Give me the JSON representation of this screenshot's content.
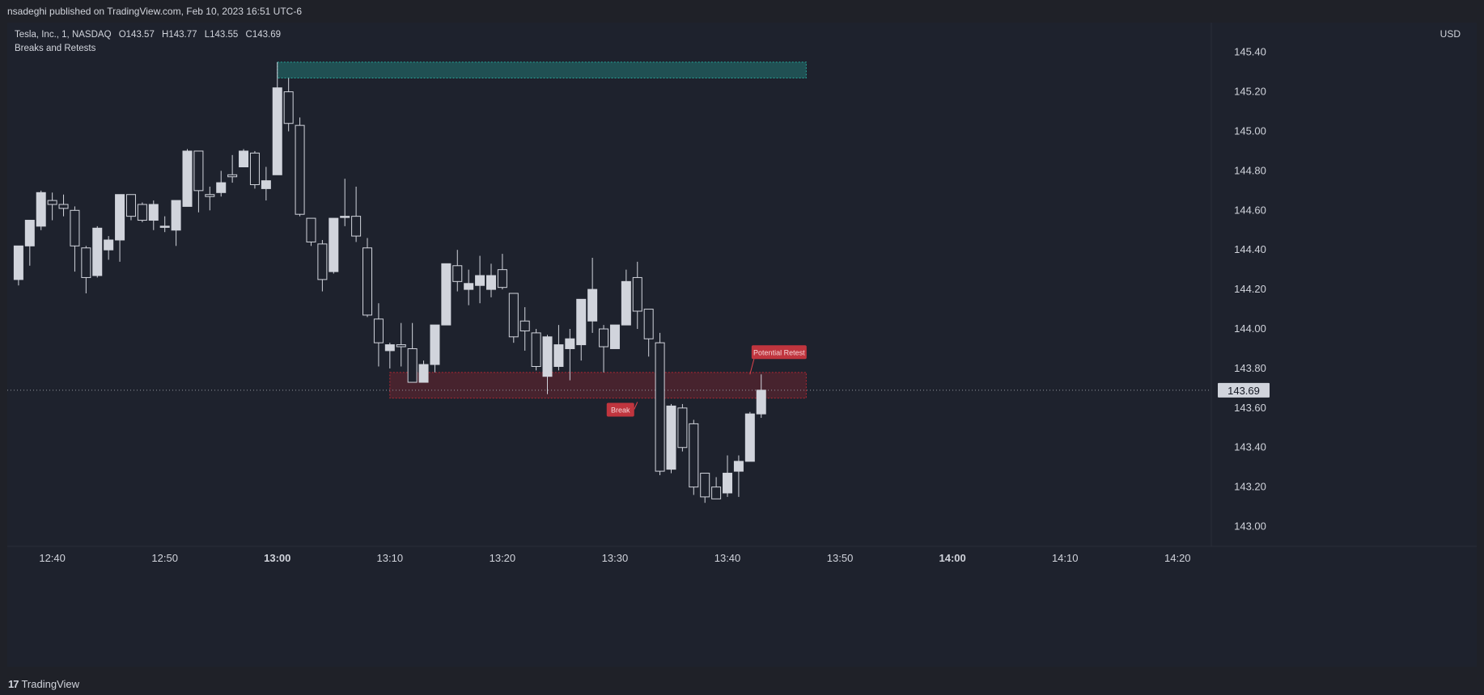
{
  "header": {
    "published_text": "nsadeghi published on TradingView.com, Feb 10, 2023 16:51 UTC-6"
  },
  "legend": {
    "symbol_line": "Tesla, Inc., 1, NASDAQ",
    "open": "O143.57",
    "high": "H143.77",
    "low": "L143.55",
    "close": "C143.69",
    "indicator": "Breaks and Retests"
  },
  "currency": "USD",
  "footer": {
    "logo_mark": "17",
    "brand": "TradingView"
  },
  "colors": {
    "background": "#1e222d",
    "candle": "#d1d4dc",
    "resistance_zone": "#26a69a",
    "support_zone": "#b22833",
    "label_red": "#c0353e"
  },
  "chart_data": {
    "type": "candlestick",
    "y_axis": {
      "range": [
        142.9,
        145.55
      ],
      "ticks": [
        "145.40",
        "145.20",
        "145.00",
        "144.80",
        "144.60",
        "144.40",
        "144.20",
        "144.00",
        "143.80",
        "143.60",
        "143.40",
        "143.20",
        "143.00"
      ]
    },
    "x_axis": {
      "range_minutes": [
        "12:36",
        "14:23"
      ],
      "ticks": [
        {
          "time": "12:40",
          "label": "12:40",
          "bold": false
        },
        {
          "time": "12:50",
          "label": "12:50",
          "bold": false
        },
        {
          "time": "13:00",
          "label": "13:00",
          "bold": true
        },
        {
          "time": "13:10",
          "label": "13:10",
          "bold": false
        },
        {
          "time": "13:20",
          "label": "13:20",
          "bold": false
        },
        {
          "time": "13:30",
          "label": "13:30",
          "bold": false
        },
        {
          "time": "13:40",
          "label": "13:40",
          "bold": false
        },
        {
          "time": "13:50",
          "label": "13:50",
          "bold": false
        },
        {
          "time": "14:00",
          "label": "14:00",
          "bold": true
        },
        {
          "time": "14:10",
          "label": "14:10",
          "bold": false
        },
        {
          "time": "14:20",
          "label": "14:20",
          "bold": false
        }
      ]
    },
    "last_price": {
      "value": 143.69,
      "label": "143.69"
    },
    "zones": [
      {
        "name": "resistance",
        "from": "13:00",
        "to": "13:47",
        "top": 145.35,
        "bottom": 145.27
      },
      {
        "name": "support",
        "from": "13:10",
        "to": "13:47",
        "top": 143.78,
        "bottom": 143.65
      }
    ],
    "labels": [
      {
        "text": "Break",
        "time": "13:32",
        "price": 143.63
      },
      {
        "text": "Potential Retest",
        "time": "13:42",
        "price": 143.77
      }
    ],
    "candles": [
      {
        "t": "12:37",
        "o": 144.25,
        "h": 144.42,
        "l": 144.22,
        "c": 144.42
      },
      {
        "t": "12:38",
        "o": 144.42,
        "h": 144.55,
        "l": 144.32,
        "c": 144.55
      },
      {
        "t": "12:39",
        "o": 144.52,
        "h": 144.7,
        "l": 144.5,
        "c": 144.69
      },
      {
        "t": "12:40",
        "o": 144.65,
        "h": 144.69,
        "l": 144.55,
        "c": 144.63
      },
      {
        "t": "12:41",
        "o": 144.63,
        "h": 144.68,
        "l": 144.57,
        "c": 144.61
      },
      {
        "t": "12:42",
        "o": 144.6,
        "h": 144.62,
        "l": 144.29,
        "c": 144.42
      },
      {
        "t": "12:43",
        "o": 144.41,
        "h": 144.42,
        "l": 144.18,
        "c": 144.26
      },
      {
        "t": "12:44",
        "o": 144.27,
        "h": 144.52,
        "l": 144.26,
        "c": 144.51
      },
      {
        "t": "12:45",
        "o": 144.4,
        "h": 144.47,
        "l": 144.35,
        "c": 144.45
      },
      {
        "t": "12:46",
        "o": 144.45,
        "h": 144.68,
        "l": 144.34,
        "c": 144.68
      },
      {
        "t": "12:47",
        "o": 144.68,
        "h": 144.68,
        "l": 144.55,
        "c": 144.57
      },
      {
        "t": "12:48",
        "o": 144.63,
        "h": 144.64,
        "l": 144.54,
        "c": 144.55
      },
      {
        "t": "12:49",
        "o": 144.55,
        "h": 144.65,
        "l": 144.5,
        "c": 144.63
      },
      {
        "t": "12:50",
        "o": 144.52,
        "h": 144.57,
        "l": 144.49,
        "c": 144.52
      },
      {
        "t": "12:51",
        "o": 144.5,
        "h": 144.65,
        "l": 144.42,
        "c": 144.65
      },
      {
        "t": "12:52",
        "o": 144.62,
        "h": 144.91,
        "l": 144.62,
        "c": 144.9
      },
      {
        "t": "12:53",
        "o": 144.9,
        "h": 144.9,
        "l": 144.59,
        "c": 144.7
      },
      {
        "t": "12:54",
        "o": 144.68,
        "h": 144.72,
        "l": 144.6,
        "c": 144.67
      },
      {
        "t": "12:55",
        "o": 144.69,
        "h": 144.8,
        "l": 144.67,
        "c": 144.74
      },
      {
        "t": "12:56",
        "o": 144.78,
        "h": 144.88,
        "l": 144.74,
        "c": 144.77
      },
      {
        "t": "12:57",
        "o": 144.82,
        "h": 144.91,
        "l": 144.82,
        "c": 144.9
      },
      {
        "t": "12:58",
        "o": 144.89,
        "h": 144.9,
        "l": 144.71,
        "c": 144.73
      },
      {
        "t": "12:59",
        "o": 144.71,
        "h": 144.82,
        "l": 144.65,
        "c": 144.75
      },
      {
        "t": "13:00",
        "o": 144.78,
        "h": 145.35,
        "l": 144.78,
        "c": 145.22
      },
      {
        "t": "13:01",
        "o": 145.2,
        "h": 145.27,
        "l": 145.0,
        "c": 145.04
      },
      {
        "t": "13:02",
        "o": 145.03,
        "h": 145.07,
        "l": 144.57,
        "c": 144.58
      },
      {
        "t": "13:03",
        "o": 144.56,
        "h": 144.56,
        "l": 144.42,
        "c": 144.44
      },
      {
        "t": "13:04",
        "o": 144.43,
        "h": 144.45,
        "l": 144.19,
        "c": 144.25
      },
      {
        "t": "13:05",
        "o": 144.29,
        "h": 144.56,
        "l": 144.28,
        "c": 144.56
      },
      {
        "t": "13:06",
        "o": 144.57,
        "h": 144.76,
        "l": 144.52,
        "c": 144.57
      },
      {
        "t": "13:07",
        "o": 144.57,
        "h": 144.72,
        "l": 144.44,
        "c": 144.47
      },
      {
        "t": "13:08",
        "o": 144.41,
        "h": 144.46,
        "l": 144.06,
        "c": 144.07
      },
      {
        "t": "13:09",
        "o": 144.05,
        "h": 144.13,
        "l": 143.81,
        "c": 143.93
      },
      {
        "t": "13:10",
        "o": 143.89,
        "h": 143.93,
        "l": 143.8,
        "c": 143.92
      },
      {
        "t": "13:11",
        "o": 143.92,
        "h": 144.03,
        "l": 143.81,
        "c": 143.91
      },
      {
        "t": "13:12",
        "o": 143.9,
        "h": 144.03,
        "l": 143.73,
        "c": 143.73
      },
      {
        "t": "13:13",
        "o": 143.73,
        "h": 143.84,
        "l": 143.73,
        "c": 143.82
      },
      {
        "t": "13:14",
        "o": 143.82,
        "h": 144.02,
        "l": 143.78,
        "c": 144.02
      },
      {
        "t": "13:15",
        "o": 144.02,
        "h": 144.33,
        "l": 144.02,
        "c": 144.33
      },
      {
        "t": "13:16",
        "o": 144.32,
        "h": 144.4,
        "l": 144.19,
        "c": 144.24
      },
      {
        "t": "13:17",
        "o": 144.2,
        "h": 144.3,
        "l": 144.12,
        "c": 144.23
      },
      {
        "t": "13:18",
        "o": 144.22,
        "h": 144.37,
        "l": 144.13,
        "c": 144.27
      },
      {
        "t": "13:19",
        "o": 144.2,
        "h": 144.33,
        "l": 144.16,
        "c": 144.27
      },
      {
        "t": "13:20",
        "o": 144.3,
        "h": 144.38,
        "l": 144.2,
        "c": 144.21
      },
      {
        "t": "13:21",
        "o": 144.18,
        "h": 144.18,
        "l": 143.93,
        "c": 143.96
      },
      {
        "t": "13:22",
        "o": 144.04,
        "h": 144.11,
        "l": 143.89,
        "c": 143.99
      },
      {
        "t": "13:23",
        "o": 143.98,
        "h": 144.0,
        "l": 143.79,
        "c": 143.81
      },
      {
        "t": "13:24",
        "o": 143.76,
        "h": 143.97,
        "l": 143.67,
        "c": 143.96
      },
      {
        "t": "13:25",
        "o": 143.81,
        "h": 144.02,
        "l": 143.79,
        "c": 143.92
      },
      {
        "t": "13:26",
        "o": 143.9,
        "h": 144.0,
        "l": 143.74,
        "c": 143.95
      },
      {
        "t": "13:27",
        "o": 143.92,
        "h": 144.15,
        "l": 143.84,
        "c": 144.15
      },
      {
        "t": "13:28",
        "o": 144.04,
        "h": 144.36,
        "l": 143.98,
        "c": 144.2
      },
      {
        "t": "13:29",
        "o": 144.0,
        "h": 144.02,
        "l": 143.78,
        "c": 143.91
      },
      {
        "t": "13:30",
        "o": 143.9,
        "h": 144.02,
        "l": 143.9,
        "c": 144.02
      },
      {
        "t": "13:31",
        "o": 144.02,
        "h": 144.3,
        "l": 144.02,
        "c": 144.24
      },
      {
        "t": "13:32",
        "o": 144.26,
        "h": 144.34,
        "l": 144.0,
        "c": 144.09
      },
      {
        "t": "13:33",
        "o": 144.1,
        "h": 144.1,
        "l": 143.86,
        "c": 143.95
      },
      {
        "t": "13:34",
        "o": 143.93,
        "h": 143.98,
        "l": 143.26,
        "c": 143.28
      },
      {
        "t": "13:35",
        "o": 143.29,
        "h": 143.62,
        "l": 143.27,
        "c": 143.61
      },
      {
        "t": "13:36",
        "o": 143.6,
        "h": 143.62,
        "l": 143.38,
        "c": 143.4
      },
      {
        "t": "13:37",
        "o": 143.52,
        "h": 143.54,
        "l": 143.16,
        "c": 143.2
      },
      {
        "t": "13:38",
        "o": 143.27,
        "h": 143.27,
        "l": 143.12,
        "c": 143.15
      },
      {
        "t": "13:39",
        "o": 143.2,
        "h": 143.25,
        "l": 143.14,
        "c": 143.14
      },
      {
        "t": "13:40",
        "o": 143.17,
        "h": 143.36,
        "l": 143.15,
        "c": 143.27
      },
      {
        "t": "13:41",
        "o": 143.28,
        "h": 143.36,
        "l": 143.15,
        "c": 143.33
      },
      {
        "t": "13:42",
        "o": 143.33,
        "h": 143.58,
        "l": 143.33,
        "c": 143.57
      },
      {
        "t": "13:43",
        "o": 143.57,
        "h": 143.77,
        "l": 143.55,
        "c": 143.69
      }
    ]
  }
}
